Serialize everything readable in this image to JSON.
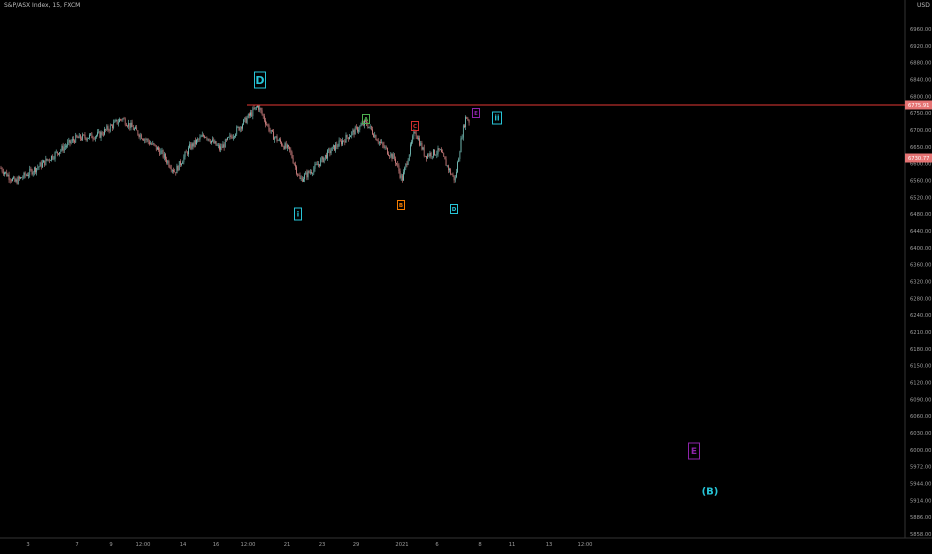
{
  "header": {
    "symbol_text": "S&P/ASX Index, 15, FXCM",
    "currency": "USD"
  },
  "colors": {
    "background": "#000000",
    "candle_up": "#7fd0c8",
    "candle_down": "#e08a8a",
    "resistance_line": "#e53935",
    "price_tag": "#e57373",
    "axis_text": "#9e9e9e",
    "wave_cyan": "#27c5d8",
    "wave_green": "#4caf50",
    "wave_orange": "#f57c00",
    "wave_red": "#d32f2f",
    "wave_purple": "#8e24aa"
  },
  "chart_data": {
    "type": "candlestick",
    "y_axis": {
      "position": "right",
      "range": [
        5848,
        6990
      ],
      "tick_labels": [
        "6960.00",
        "6920.00",
        "6880.00",
        "6840.00",
        "6800.00",
        "6775.91",
        "6750.00",
        "6730.77",
        "6700.00",
        "6650.00",
        "6600.00",
        "6560.00",
        "6520.00",
        "6480.00",
        "6440.00",
        "6400.00",
        "6360.00",
        "6320.00",
        "6280.00",
        "6240.00",
        "6210.00",
        "6180.00",
        "6150.00",
        "6120.00",
        "6090.00",
        "6060.00",
        "6030.00",
        "6000.00",
        "5972.00",
        "5944.00",
        "5914.00",
        "5886.00",
        "5858.00"
      ]
    },
    "x_axis": {
      "tick_labels": [
        "3",
        "7",
        "9",
        "12:00",
        "14",
        "16",
        "12:00",
        "21",
        "23",
        "29",
        "2021",
        "6",
        "8",
        "11",
        "13",
        "12:00"
      ]
    },
    "approx_price_path": [
      {
        "x": 0,
        "y": 6620
      },
      {
        "x": 15,
        "y": 6585
      },
      {
        "x": 40,
        "y": 6625
      },
      {
        "x": 75,
        "y": 6690
      },
      {
        "x": 100,
        "y": 6700
      },
      {
        "x": 122,
        "y": 6740
      },
      {
        "x": 140,
        "y": 6700
      },
      {
        "x": 160,
        "y": 6660
      },
      {
        "x": 175,
        "y": 6610
      },
      {
        "x": 190,
        "y": 6670
      },
      {
        "x": 205,
        "y": 6700
      },
      {
        "x": 220,
        "y": 6665
      },
      {
        "x": 240,
        "y": 6720
      },
      {
        "x": 258,
        "y": 6770
      },
      {
        "x": 272,
        "y": 6700
      },
      {
        "x": 290,
        "y": 6660
      },
      {
        "x": 300,
        "y": 6590
      },
      {
        "x": 315,
        "y": 6620
      },
      {
        "x": 330,
        "y": 6660
      },
      {
        "x": 350,
        "y": 6700
      },
      {
        "x": 366,
        "y": 6730
      },
      {
        "x": 380,
        "y": 6680
      },
      {
        "x": 395,
        "y": 6640
      },
      {
        "x": 402,
        "y": 6590
      },
      {
        "x": 415,
        "y": 6710
      },
      {
        "x": 425,
        "y": 6650
      },
      {
        "x": 440,
        "y": 6660
      },
      {
        "x": 450,
        "y": 6610
      },
      {
        "x": 455,
        "y": 6590
      },
      {
        "x": 462,
        "y": 6700
      },
      {
        "x": 466,
        "y": 6745
      },
      {
        "x": 470,
        "y": 6730
      }
    ],
    "resistance_level": 6775.91,
    "last_price": 6730.77,
    "wave_labels": [
      {
        "text": "D",
        "color_key": "wave_cyan",
        "size": "large"
      },
      {
        "text": "i",
        "color_key": "wave_cyan",
        "size": "small"
      },
      {
        "text": "A",
        "color_key": "wave_green",
        "size": "small"
      },
      {
        "text": "B",
        "color_key": "wave_orange",
        "size": "small"
      },
      {
        "text": "C",
        "color_key": "wave_red",
        "size": "small"
      },
      {
        "text": "D",
        "color_key": "wave_cyan",
        "size": "small"
      },
      {
        "text": "E",
        "color_key": "wave_purple",
        "size": "small"
      },
      {
        "text": "ii",
        "color_key": "wave_cyan",
        "size": "medium"
      },
      {
        "text": "E",
        "color_key": "wave_purple",
        "size": "medium"
      },
      {
        "text": "(B)",
        "color_key": "wave_cyan",
        "size": "plain"
      }
    ]
  }
}
